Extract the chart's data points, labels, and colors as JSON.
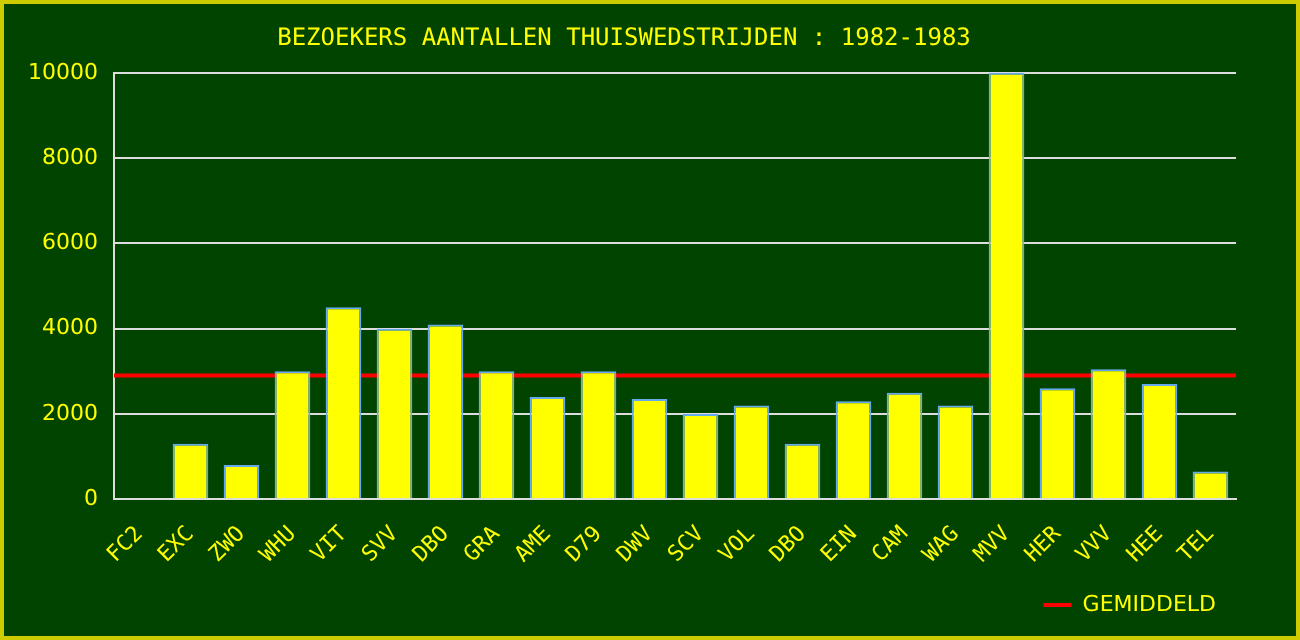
{
  "chart_data": {
    "type": "bar",
    "title": "BEZOEKERS AANTALLEN THUISWEDSTRIJDEN : 1982-1983",
    "categories": [
      "FC2",
      "EXC",
      "ZWO",
      "WHU",
      "VIT",
      "SVV",
      "DBO",
      "GRA",
      "AME",
      "D79",
      "DWV",
      "SCV",
      "VOL",
      "DBO",
      "EIN",
      "CAM",
      "WAG",
      "MVV",
      "HER",
      "VVV",
      "HEE",
      "TEL"
    ],
    "values": [
      null,
      1300,
      800,
      3000,
      4500,
      4000,
      4100,
      3000,
      2400,
      3000,
      2350,
      2000,
      2200,
      1300,
      2300,
      2500,
      2200,
      10000,
      2600,
      3050,
      2700,
      650
    ],
    "color": "#ffff00",
    "ylim": [
      0,
      10000
    ],
    "yticks": [
      0,
      2000,
      4000,
      6000,
      8000,
      10000
    ],
    "grid": "y",
    "ref_lines": [
      {
        "axis": "y",
        "value": 2900,
        "label": "GEMIDDELD",
        "color": "#ff0000"
      }
    ],
    "legend": "bottom right"
  }
}
